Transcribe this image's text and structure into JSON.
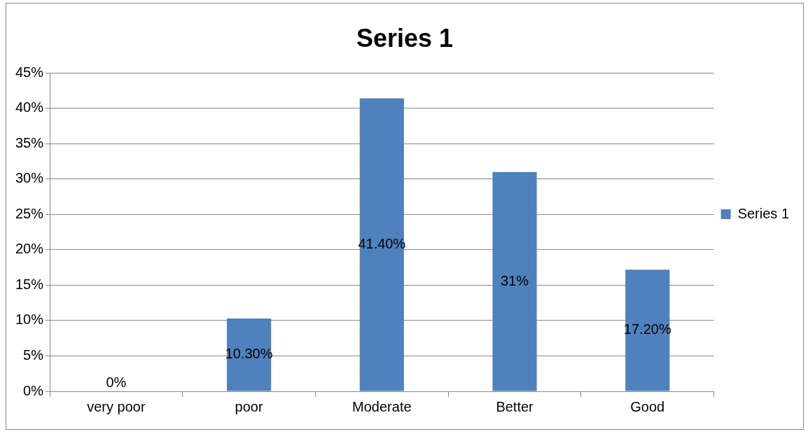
{
  "chart_data": {
    "type": "bar",
    "title": "Series 1",
    "categories": [
      "very poor",
      "poor",
      "Moderate",
      "Better",
      "Good"
    ],
    "series": [
      {
        "name": "Series 1",
        "color": "#4f81bd",
        "values": [
          0,
          10.3,
          41.4,
          31,
          17.2
        ],
        "value_labels": [
          "0%",
          "10.30%",
          "41.40%",
          "31%",
          "17.20%"
        ]
      }
    ],
    "ylim": [
      0,
      45
    ],
    "yticks": [
      {
        "value": 0,
        "label": "0%"
      },
      {
        "value": 5,
        "label": "5%"
      },
      {
        "value": 10,
        "label": "10%"
      },
      {
        "value": 15,
        "label": "15%"
      },
      {
        "value": 20,
        "label": "20%"
      },
      {
        "value": 25,
        "label": "25%"
      },
      {
        "value": 30,
        "label": "30%"
      },
      {
        "value": 35,
        "label": "35%"
      },
      {
        "value": 40,
        "label": "40%"
      },
      {
        "value": 45,
        "label": "45%"
      }
    ],
    "grid": "y",
    "legend": "right"
  }
}
